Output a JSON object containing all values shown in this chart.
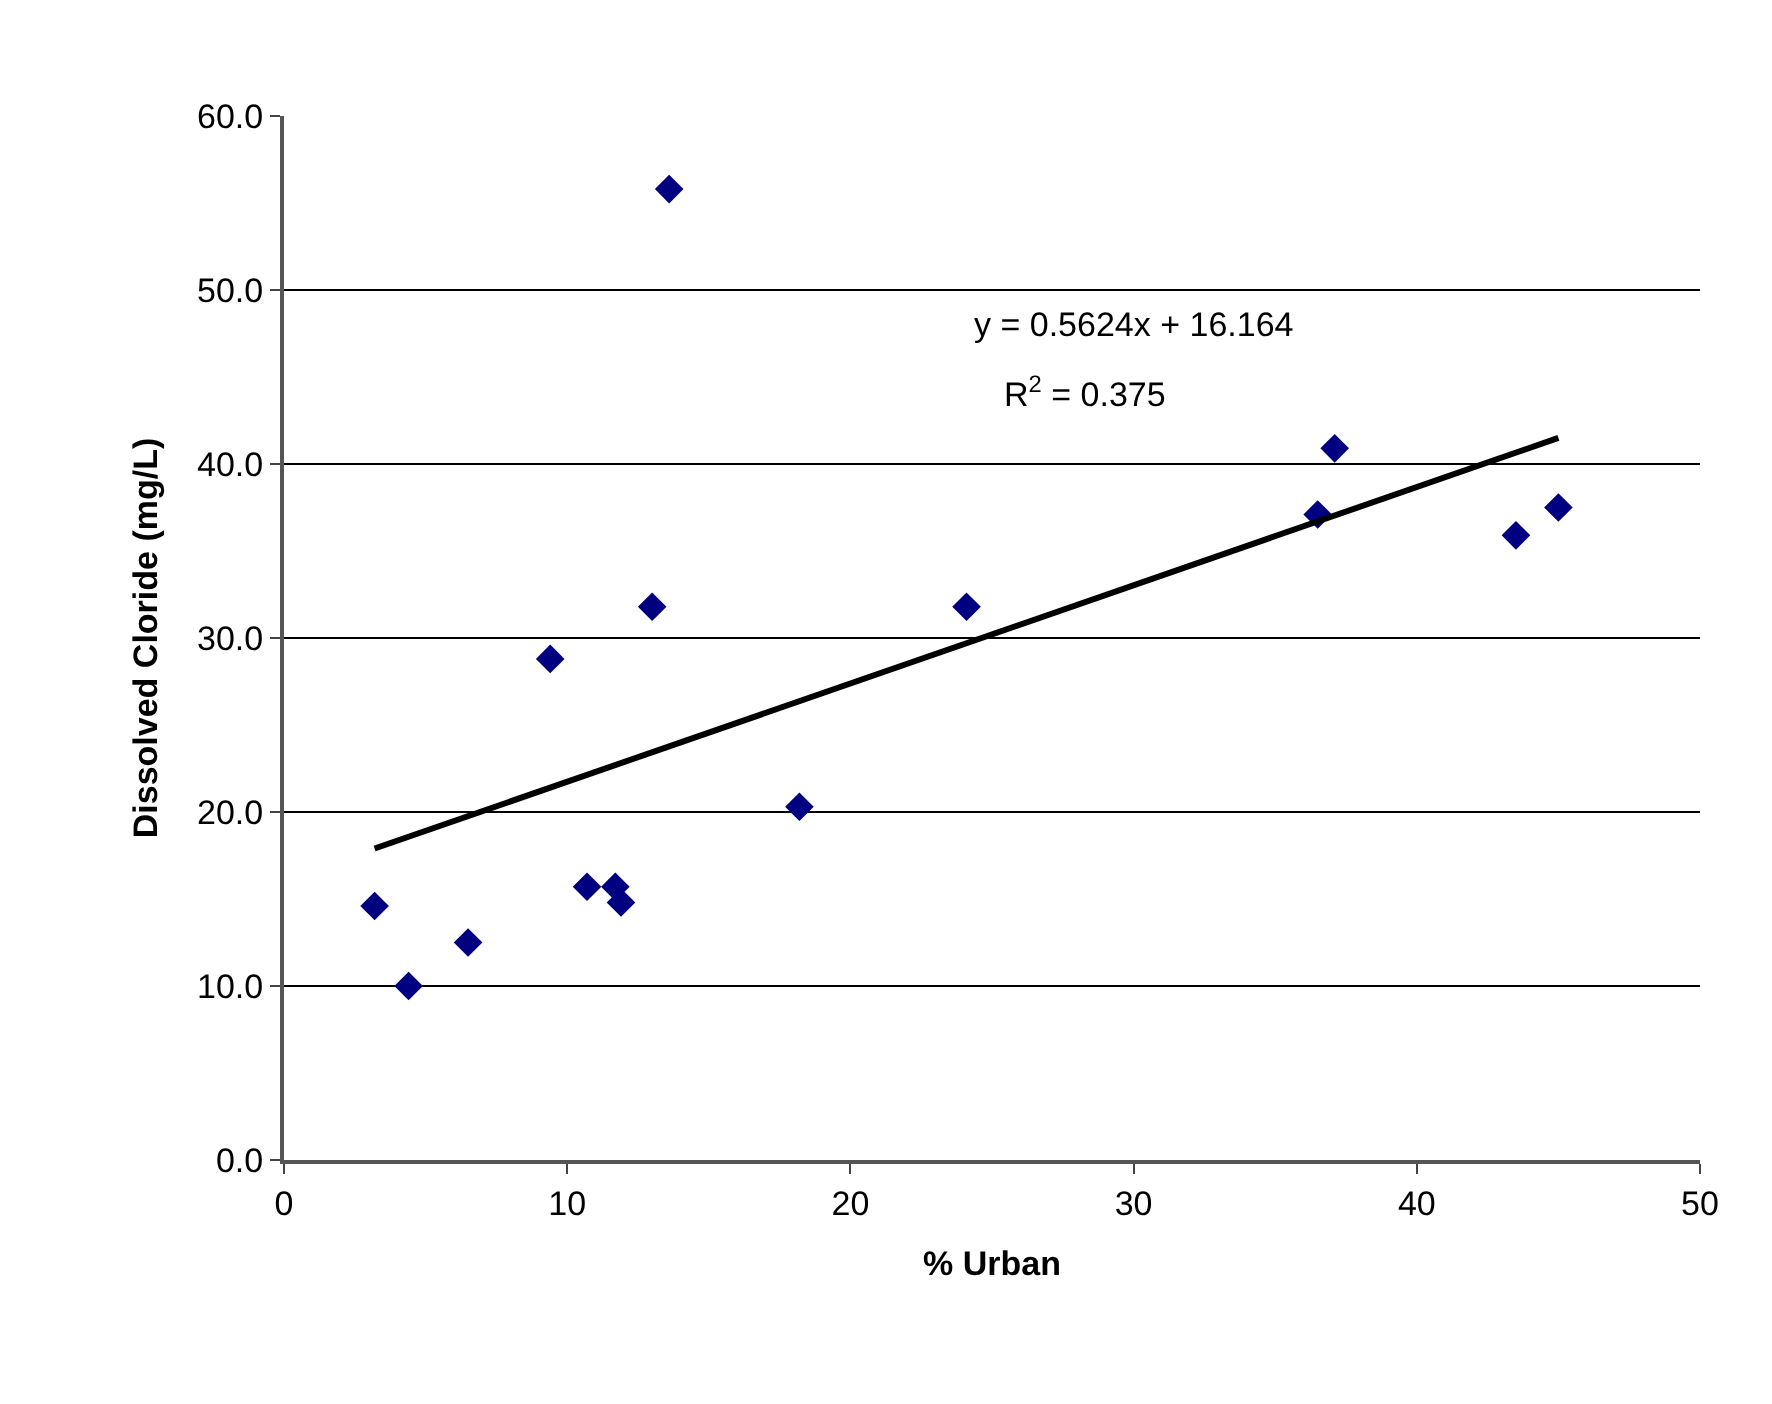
{
  "chart_data": {
    "type": "scatter",
    "xlabel": "% Urban",
    "ylabel": "Dissolved Cloride (mg/L)",
    "marker": "diamond",
    "grid": "y",
    "xlim": [
      0,
      50
    ],
    "xticks": [
      0,
      10,
      20,
      30,
      40,
      50
    ],
    "ylim": [
      0,
      60
    ],
    "yticks": [
      {
        "value": 0,
        "label": "0.0"
      },
      {
        "value": 10,
        "label": "10.0"
      },
      {
        "value": 20,
        "label": "20.0"
      },
      {
        "value": 30,
        "label": "30.0"
      },
      {
        "value": 40,
        "label": "40.0"
      },
      {
        "value": 50,
        "label": "50.0"
      },
      {
        "value": 60,
        "label": "60.0"
      }
    ],
    "annotations": [
      "y = 0.5624x + 16.164",
      "R$^{2}$ = 0.375"
    ],
    "series": [
      {
        "color": "#000080",
        "x": [
          3.2,
          4.4,
          6.5,
          9.4,
          10.7,
          11.7,
          11.9,
          13.0,
          13.6,
          18.2,
          24.1,
          36.5,
          37.1,
          43.5,
          45.0
        ],
        "values": [
          14.6,
          10.0,
          12.5,
          28.8,
          15.7,
          15.7,
          14.8,
          31.8,
          55.8,
          20.3,
          31.8,
          37.1,
          40.9,
          35.9,
          37.5
        ]
      },
      {
        "type": "line",
        "color": "#000000",
        "marker": "none",
        "x": [
          3.2,
          45.0
        ],
        "values": [
          17.9,
          41.5
        ]
      }
    ]
  }
}
